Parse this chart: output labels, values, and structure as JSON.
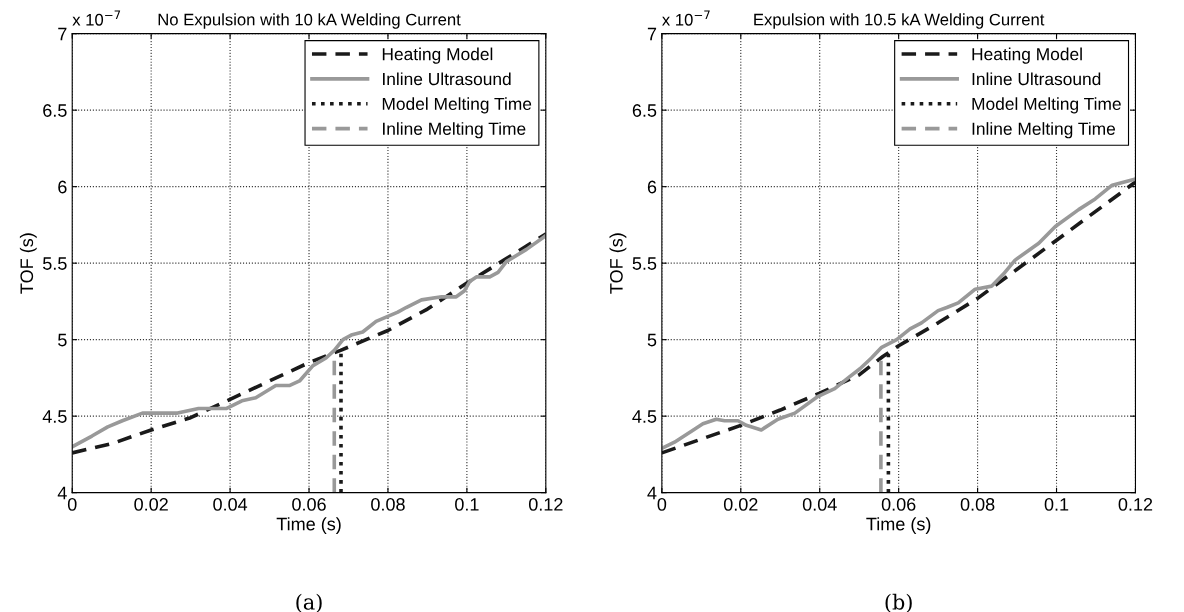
{
  "chart_data": [
    {
      "type": "line",
      "title": "No Expulsion with 10 kA Welding Current",
      "xlabel": "Time (s)",
      "ylabel": "TOF (s)",
      "xlim": [
        0,
        0.12
      ],
      "ylim": [
        4,
        7
      ],
      "xticks": [
        0,
        0.02,
        0.04,
        0.06,
        0.08,
        0.1,
        0.12
      ],
      "yticks": [
        4,
        4.5,
        5,
        5.5,
        6,
        6.5,
        7
      ],
      "grid": true,
      "legend": "top right",
      "annotations": [
        "x 10$^{−7}$",
        "(a)"
      ],
      "series": [
        {
          "name": "Heating Model",
          "color": "#1a1a1a",
          "line_style": "dashed",
          "x": [
            0,
            0.01,
            0.02,
            0.03,
            0.04,
            0.05,
            0.06,
            0.068,
            0.08,
            0.09,
            0.1,
            0.11,
            0.12
          ],
          "values": [
            4.26,
            4.32,
            4.41,
            4.49,
            4.61,
            4.73,
            4.85,
            4.93,
            5.06,
            5.2,
            5.37,
            5.53,
            5.69
          ]
        },
        {
          "name": "Inline Ultrasound",
          "color": "#999999",
          "line_style": "solid",
          "x": [
            0,
            0.005,
            0.009,
            0.0127,
            0.0178,
            0.0267,
            0.032,
            0.039,
            0.043,
            0.0465,
            0.0516,
            0.055,
            0.0576,
            0.061,
            0.0643,
            0.0664,
            0.0686,
            0.0707,
            0.0736,
            0.077,
            0.0825,
            0.0846,
            0.0885,
            0.0936,
            0.0973,
            0.0994,
            0.1007,
            0.1024,
            0.1058,
            0.1079,
            0.11,
            0.1151,
            0.12
          ],
          "values": [
            4.3,
            4.37,
            4.43,
            4.47,
            4.52,
            4.52,
            4.55,
            4.55,
            4.6,
            4.62,
            4.7,
            4.7,
            4.73,
            4.83,
            4.88,
            4.93,
            5.0,
            5.03,
            5.05,
            5.12,
            5.18,
            5.21,
            5.26,
            5.28,
            5.28,
            5.32,
            5.38,
            5.41,
            5.41,
            5.44,
            5.51,
            5.59,
            5.68
          ]
        },
        {
          "name": "Model Melting Time",
          "color": "#1a1a1a",
          "line_style": "dotted",
          "x": [
            0.0681,
            0.0681
          ],
          "values": [
            4,
            4.92
          ]
        },
        {
          "name": "Inline Melting Time",
          "color": "#999999",
          "line_style": "dashed",
          "x": [
            0.0664,
            0.0664
          ],
          "values": [
            4,
            4.92
          ]
        }
      ]
    },
    {
      "type": "line",
      "title": "Expulsion with 10.5 kA Welding Current",
      "xlabel": "Time (s)",
      "ylabel": "TOF (s)",
      "xlim": [
        0,
        0.12
      ],
      "ylim": [
        4,
        7
      ],
      "xticks": [
        0,
        0.02,
        0.04,
        0.06,
        0.08,
        0.1,
        0.12
      ],
      "yticks": [
        4,
        4.5,
        5,
        5.5,
        6,
        6.5,
        7
      ],
      "grid": true,
      "legend": "top right",
      "annotations": [
        "x 10$^{−7}$",
        "(b)"
      ],
      "series": [
        {
          "name": "Heating Model",
          "color": "#1a1a1a",
          "line_style": "dashed",
          "x": [
            0,
            0.01,
            0.02,
            0.03,
            0.04,
            0.05,
            0.056,
            0.06,
            0.07,
            0.08,
            0.09,
            0.1,
            0.11,
            0.12
          ],
          "values": [
            4.26,
            4.35,
            4.44,
            4.54,
            4.65,
            4.77,
            4.89,
            4.96,
            5.11,
            5.27,
            5.46,
            5.65,
            5.84,
            6.03
          ]
        },
        {
          "name": "Inline Ultrasound",
          "color": "#999999",
          "line_style": "solid",
          "x": [
            0,
            0.0032,
            0.0074,
            0.0104,
            0.0138,
            0.0159,
            0.0193,
            0.0214,
            0.0252,
            0.0294,
            0.0337,
            0.0396,
            0.0438,
            0.0472,
            0.0502,
            0.0531,
            0.0557,
            0.0595,
            0.0629,
            0.0658,
            0.07,
            0.0722,
            0.0751,
            0.0794,
            0.0836,
            0.0866,
            0.0895,
            0.0955,
            0.0997,
            0.1056,
            0.1098,
            0.1141,
            0.12
          ],
          "values": [
            4.29,
            4.33,
            4.4,
            4.45,
            4.48,
            4.47,
            4.47,
            4.44,
            4.41,
            4.48,
            4.52,
            4.63,
            4.68,
            4.75,
            4.81,
            4.88,
            4.95,
            5.0,
            5.07,
            5.11,
            5.19,
            5.21,
            5.24,
            5.33,
            5.35,
            5.43,
            5.52,
            5.63,
            5.74,
            5.85,
            5.92,
            6.01,
            6.05
          ]
        },
        {
          "name": "Model Melting Time",
          "color": "#1a1a1a",
          "line_style": "dotted",
          "x": [
            0.0574,
            0.0574
          ],
          "values": [
            4,
            4.91
          ]
        },
        {
          "name": "Inline Melting Time",
          "color": "#999999",
          "line_style": "dashed",
          "x": [
            0.0555,
            0.0555
          ],
          "values": [
            4,
            4.91
          ]
        }
      ]
    }
  ]
}
